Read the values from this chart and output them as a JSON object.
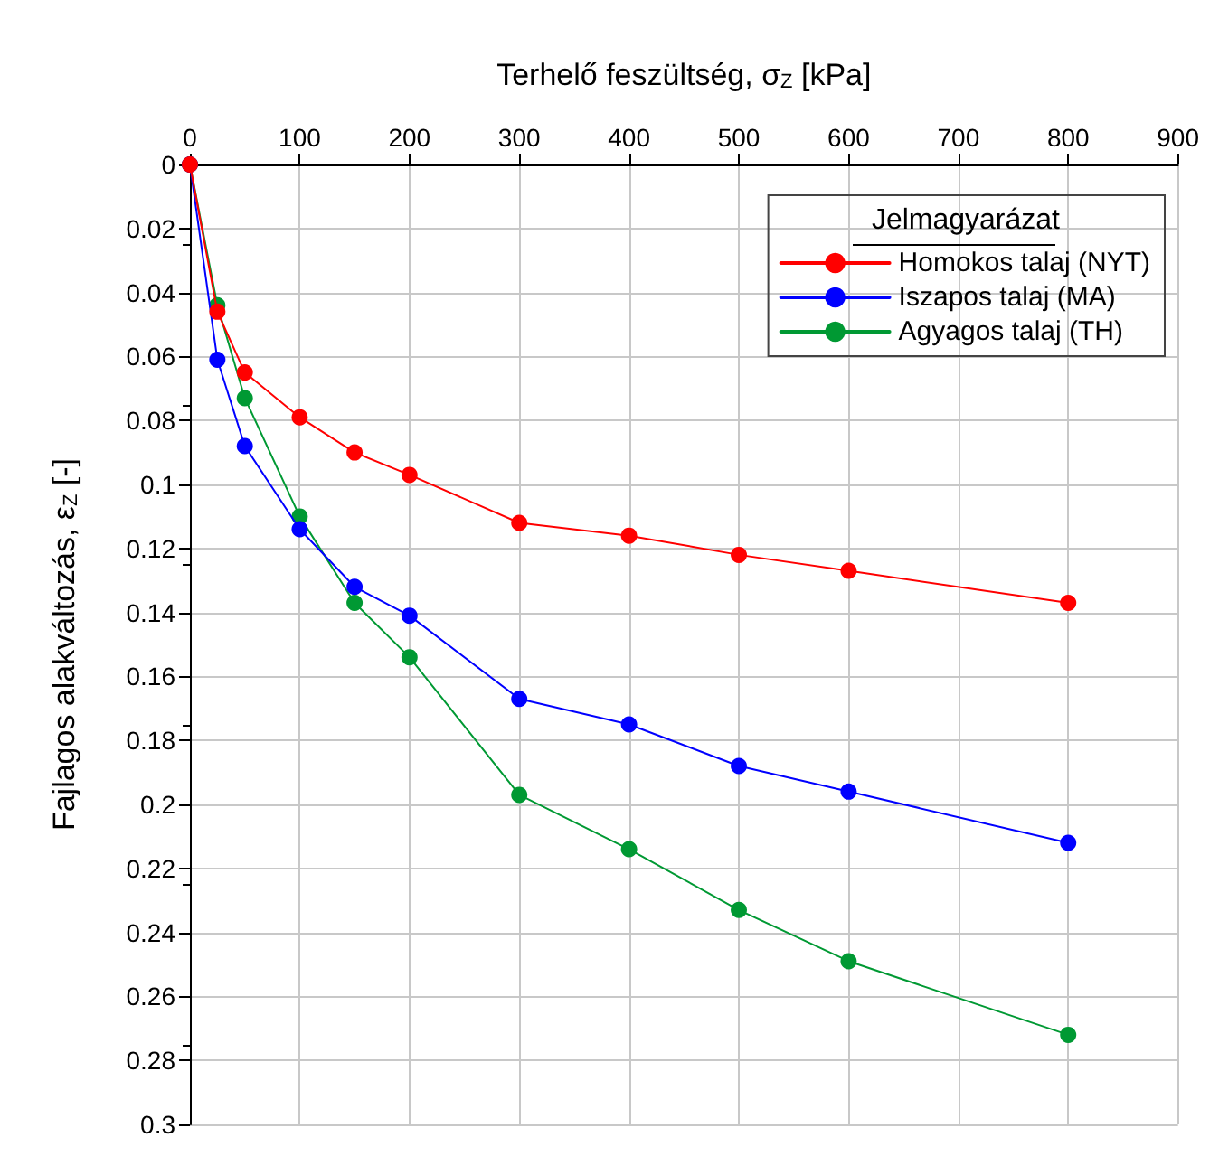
{
  "chart_data": {
    "type": "line",
    "xlabel": "Terhelő feszültség, σ$_{Z}$ [kPa]",
    "ylabel": "Fajlagos alakváltozás, ε$_{Z}$ [-]",
    "legend_title": "Jelmagyarázat",
    "x": [
      0,
      25,
      50,
      100,
      150,
      200,
      300,
      400,
      500,
      600,
      800
    ],
    "series": [
      {
        "name": "Homokos talaj (NYT)",
        "color": "#ff0000",
        "values": [
          0,
          0.046,
          0.065,
          0.079,
          0.09,
          0.097,
          0.112,
          0.116,
          0.122,
          0.127,
          0.137
        ]
      },
      {
        "name": "Iszapos talaj (MA)",
        "color": "#0000ff",
        "values": [
          0,
          0.061,
          0.088,
          0.114,
          0.132,
          0.141,
          0.167,
          0.175,
          0.188,
          0.196,
          0.212
        ]
      },
      {
        "name": "Agyagos talaj (TH)",
        "color": "#009933",
        "values": [
          0,
          0.044,
          0.073,
          0.11,
          0.137,
          0.154,
          0.197,
          0.214,
          0.233,
          0.249,
          0.272
        ]
      }
    ],
    "xlim": [
      0,
      900
    ],
    "xticks": [
      0,
      100,
      200,
      300,
      400,
      500,
      600,
      700,
      800,
      900
    ],
    "ylim": [
      0.3,
      0
    ],
    "yticks": [
      0,
      0.02,
      0.04,
      0.06,
      0.08,
      0.1,
      0.12,
      0.14,
      0.16,
      0.18,
      0.2,
      0.22,
      0.24,
      0.26,
      0.28,
      0.3
    ],
    "grid": true,
    "legend": "top right",
    "marker": "circle",
    "line_style": "solid"
  }
}
